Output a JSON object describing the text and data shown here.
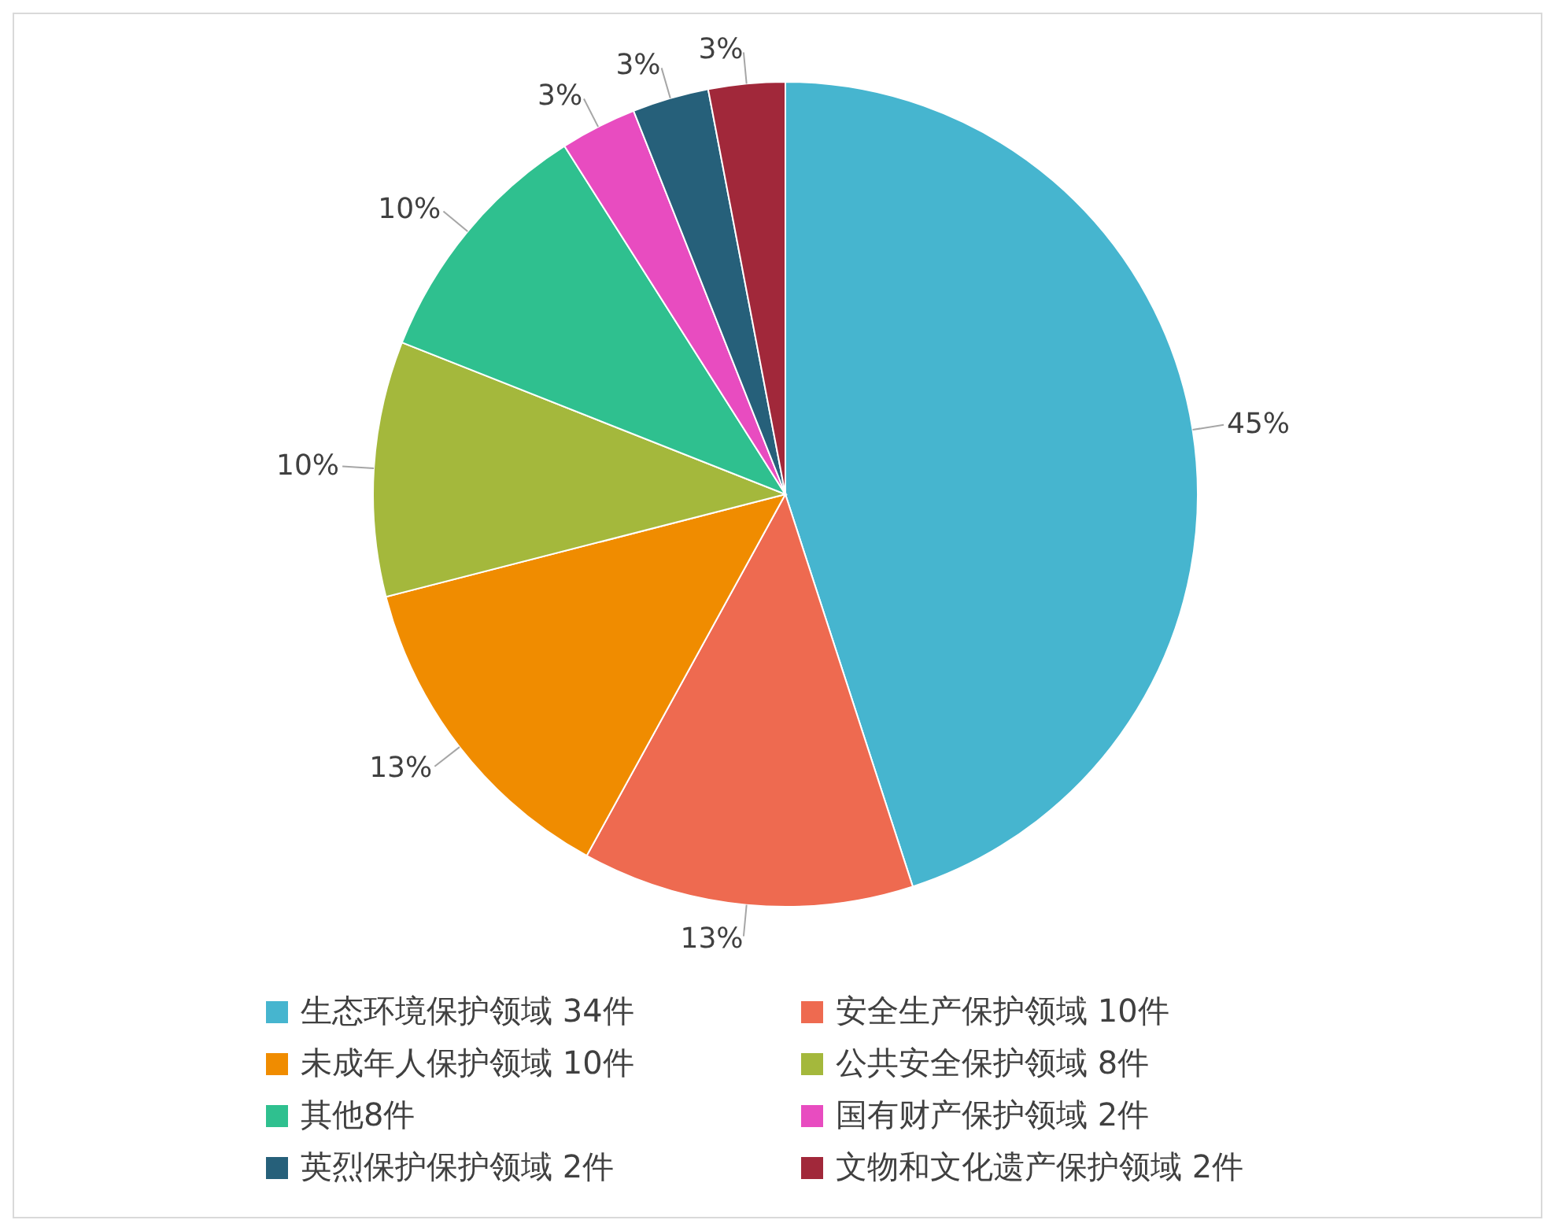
{
  "chart_data": {
    "type": "pie",
    "categories": [
      "生态环境保护领域 34件",
      "安全生产保护领域 10件",
      "未成年人保护领域 10件",
      "公共安全保护领域 8件",
      "其他8件",
      "国有财产保护领域 2件",
      "英烈保护保护领域 2件",
      "文物和文化遗产保护领域 2件"
    ],
    "values": [
      45,
      13,
      13,
      10,
      10,
      3,
      3,
      3
    ],
    "value_labels": [
      "45%",
      "13%",
      "13%",
      "10%",
      "10%",
      "3%",
      "3%",
      "3%"
    ],
    "colors": [
      "#46b5cf",
      "#ee6a50",
      "#f08c00",
      "#a4b83c",
      "#2fc08f",
      "#e84cc0",
      "#26607a",
      "#a1283a"
    ],
    "legend": "bottom"
  }
}
